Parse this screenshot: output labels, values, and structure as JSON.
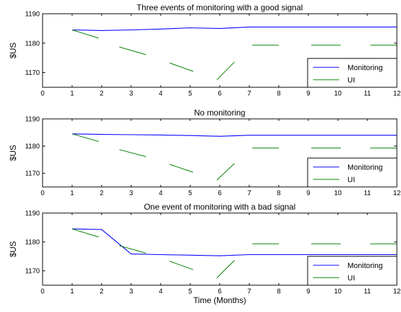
{
  "figure": {
    "shared_xlabel": "Time (Months)",
    "colors": {
      "monitoring": "#0000ff",
      "ui": "#008000"
    }
  },
  "chart_data": [
    {
      "type": "line",
      "title": "Three events of monitoring with a good signal",
      "xlabel": "",
      "ylabel": "$US",
      "xlim": [
        0,
        12
      ],
      "ylim": [
        1165,
        1190
      ],
      "xticks": [
        0,
        1,
        2,
        3,
        4,
        5,
        6,
        7,
        8,
        9,
        10,
        11,
        12
      ],
      "yticks": [
        1170,
        1180,
        1190
      ],
      "legend": {
        "placement": "bottom-right",
        "entries": [
          "Monitoring",
          "UI"
        ]
      },
      "series": [
        {
          "name": "Monitoring",
          "x": [
            1,
            2,
            3,
            4,
            5,
            6,
            7,
            8,
            9,
            10,
            11,
            12
          ],
          "y": [
            1184.5,
            1184.3,
            1184.5,
            1184.8,
            1185.2,
            1185.0,
            1185.5,
            1185.5,
            1185.5,
            1185.5,
            1185.5,
            1185.5
          ]
        },
        {
          "name": "UI",
          "segments": [
            [
              [
                1,
                1184.5
              ],
              [
                1.9,
                1181.7
              ]
            ],
            [
              [
                2.6,
                1178.7
              ],
              [
                3.5,
                1176.1
              ]
            ],
            [
              [
                4.3,
                1173.3
              ],
              [
                5.1,
                1170.4
              ]
            ],
            [
              [
                5.9,
                1167.5
              ],
              [
                6.5,
                1173.6
              ]
            ],
            [
              [
                7.1,
                1179.3
              ],
              [
                8.0,
                1179.3
              ]
            ],
            [
              [
                9.1,
                1179.3
              ],
              [
                10.1,
                1179.3
              ]
            ],
            [
              [
                11.1,
                1179.3
              ],
              [
                12.0,
                1179.3
              ]
            ]
          ]
        }
      ]
    },
    {
      "type": "line",
      "title": "No monitoring",
      "xlabel": "",
      "ylabel": "$US",
      "xlim": [
        0,
        12
      ],
      "ylim": [
        1165,
        1190
      ],
      "xticks": [
        0,
        1,
        2,
        3,
        4,
        5,
        6,
        7,
        8,
        9,
        10,
        11,
        12
      ],
      "yticks": [
        1170,
        1180,
        1190
      ],
      "legend": {
        "placement": "bottom-right",
        "entries": [
          "Monitoring",
          "UI"
        ]
      },
      "series": [
        {
          "name": "Monitoring",
          "x": [
            1,
            2,
            3,
            4,
            5,
            6,
            7,
            8,
            9,
            10,
            11,
            12
          ],
          "y": [
            1184.5,
            1184.3,
            1184.2,
            1184.1,
            1183.9,
            1183.6,
            1184.0,
            1184.0,
            1184.0,
            1184.0,
            1184.0,
            1184.0
          ]
        },
        {
          "name": "UI",
          "segments": [
            [
              [
                1,
                1184.5
              ],
              [
                1.9,
                1181.7
              ]
            ],
            [
              [
                2.6,
                1178.7
              ],
              [
                3.5,
                1176.1
              ]
            ],
            [
              [
                4.3,
                1173.3
              ],
              [
                5.1,
                1170.4
              ]
            ],
            [
              [
                5.9,
                1167.5
              ],
              [
                6.5,
                1173.6
              ]
            ],
            [
              [
                7.1,
                1179.3
              ],
              [
                8.0,
                1179.3
              ]
            ],
            [
              [
                9.1,
                1179.3
              ],
              [
                10.1,
                1179.3
              ]
            ],
            [
              [
                11.1,
                1179.3
              ],
              [
                12.0,
                1179.3
              ]
            ]
          ]
        }
      ]
    },
    {
      "type": "line",
      "title": "One event of monitoring with a bad signal",
      "xlabel": "Time (Months)",
      "ylabel": "$US",
      "xlim": [
        0,
        12
      ],
      "ylim": [
        1165,
        1190
      ],
      "xticks": [
        0,
        1,
        2,
        3,
        4,
        5,
        6,
        7,
        8,
        9,
        10,
        11,
        12
      ],
      "yticks": [
        1170,
        1180,
        1190
      ],
      "legend": {
        "placement": "bottom-right",
        "entries": [
          "Monitoring",
          "UI"
        ]
      },
      "series": [
        {
          "name": "Monitoring",
          "x": [
            1,
            2,
            3,
            4,
            5,
            6,
            7,
            8,
            9,
            10,
            11,
            12
          ],
          "y": [
            1184.5,
            1184.3,
            1175.8,
            1175.6,
            1175.4,
            1175.2,
            1175.6,
            1175.6,
            1175.6,
            1175.6,
            1175.6,
            1175.6
          ]
        },
        {
          "name": "UI",
          "segments": [
            [
              [
                1,
                1184.5
              ],
              [
                1.9,
                1181.7
              ]
            ],
            [
              [
                2.6,
                1178.7
              ],
              [
                3.5,
                1176.1
              ]
            ],
            [
              [
                4.3,
                1173.3
              ],
              [
                5.1,
                1170.4
              ]
            ],
            [
              [
                5.9,
                1167.5
              ],
              [
                6.5,
                1173.6
              ]
            ],
            [
              [
                7.1,
                1179.3
              ],
              [
                8.0,
                1179.3
              ]
            ],
            [
              [
                9.1,
                1179.3
              ],
              [
                10.1,
                1179.3
              ]
            ],
            [
              [
                11.1,
                1179.3
              ],
              [
                12.0,
                1179.3
              ]
            ]
          ]
        }
      ]
    }
  ]
}
